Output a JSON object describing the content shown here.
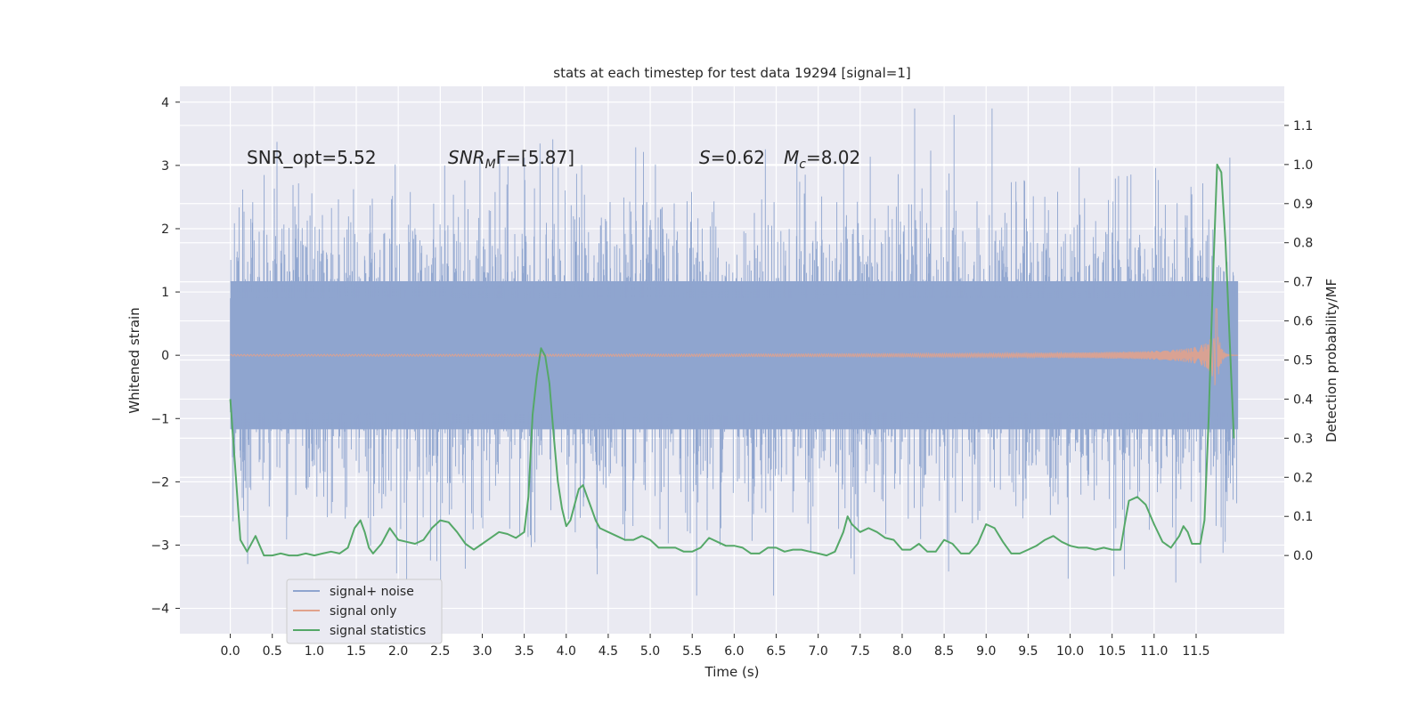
{
  "chart_data": {
    "type": "line",
    "title": "stats at each timestep for test data 19294 [signal=1]",
    "xlabel": "Time (s)",
    "ylabel": "Whitened strain",
    "ylabel_right": "Detection probability/MF",
    "xlim": [
      -0.6,
      12.55
    ],
    "ylim": [
      -4.4,
      4.25
    ],
    "ylim_right": [
      -0.2,
      1.2
    ],
    "grid": true,
    "legend_position": "lower-left",
    "x_ticks": [
      "0.0",
      "0.5",
      "1.0",
      "1.5",
      "2.0",
      "2.5",
      "3.0",
      "3.5",
      "4.0",
      "4.5",
      "5.0",
      "5.5",
      "6.0",
      "6.5",
      "7.0",
      "7.5",
      "8.0",
      "8.5",
      "9.0",
      "9.5",
      "10.0",
      "10.5",
      "11.0",
      "11.5"
    ],
    "y_ticks": [
      "4",
      "3",
      "2",
      "1",
      "0",
      "−1",
      "−2",
      "−3",
      "−4"
    ],
    "y_ticks_right": [
      "1.1",
      "1.0",
      "0.9",
      "0.8",
      "0.7",
      "0.6",
      "0.5",
      "0.4",
      "0.3",
      "0.2",
      "0.1",
      "0.0"
    ],
    "annotations": {
      "snr_opt": "SNR_opt=5.52",
      "snr_mf_label": "SNR",
      "snr_mf_sub": "M",
      "snr_mf_value": "F=[5.87]",
      "s_label": "S",
      "s_value": "=0.62",
      "mc_label": "M",
      "mc_sub": "c",
      "mc_value": "=8.02"
    },
    "series": [
      {
        "name": "signal+ noise",
        "color": "#8fa5cf",
        "description_values": "white noise, approx. range -3.8 to 3.9, t = 0 to 12",
        "t_range": [
          0,
          12
        ],
        "typical_extent": [
          -1.8,
          1.8
        ],
        "extreme_extent": [
          -3.8,
          3.9
        ]
      },
      {
        "name": "signal only",
        "color": "#e1a28c",
        "t_range": [
          0,
          12
        ],
        "chirp_end": 11.75,
        "peak_amplitude": 0.8
      },
      {
        "name": "signal statistics",
        "color": "#55a868",
        "x": [
          0.0,
          0.05,
          0.12,
          0.2,
          0.3,
          0.4,
          0.5,
          0.6,
          0.7,
          0.8,
          0.9,
          1.0,
          1.1,
          1.2,
          1.3,
          1.4,
          1.48,
          1.55,
          1.6,
          1.65,
          1.7,
          1.8,
          1.9,
          2.0,
          2.1,
          2.2,
          2.3,
          2.4,
          2.5,
          2.6,
          2.7,
          2.8,
          2.9,
          3.0,
          3.1,
          3.2,
          3.3,
          3.4,
          3.5,
          3.55,
          3.6,
          3.65,
          3.7,
          3.75,
          3.8,
          3.85,
          3.9,
          3.95,
          4.0,
          4.05,
          4.1,
          4.15,
          4.2,
          4.25,
          4.3,
          4.35,
          4.4,
          4.5,
          4.6,
          4.7,
          4.8,
          4.9,
          5.0,
          5.1,
          5.2,
          5.3,
          5.4,
          5.5,
          5.6,
          5.7,
          5.8,
          5.9,
          6.0,
          6.1,
          6.2,
          6.3,
          6.4,
          6.5,
          6.6,
          6.7,
          6.8,
          6.9,
          7.0,
          7.1,
          7.2,
          7.3,
          7.35,
          7.4,
          7.5,
          7.6,
          7.7,
          7.8,
          7.9,
          8.0,
          8.1,
          8.2,
          8.3,
          8.4,
          8.5,
          8.6,
          8.7,
          8.8,
          8.9,
          9.0,
          9.1,
          9.2,
          9.3,
          9.4,
          9.5,
          9.6,
          9.7,
          9.8,
          9.9,
          10.0,
          10.1,
          10.2,
          10.3,
          10.4,
          10.5,
          10.6,
          10.65,
          10.7,
          10.8,
          10.9,
          11.0,
          11.1,
          11.2,
          11.3,
          11.35,
          11.4,
          11.45,
          11.5,
          11.55,
          11.6,
          11.65,
          11.7,
          11.75,
          11.8,
          11.85,
          11.9,
          11.95
        ],
        "values": [
          0.4,
          0.25,
          0.04,
          0.01,
          0.05,
          0.0,
          0.0,
          0.005,
          0.0,
          0.0,
          0.005,
          0.0,
          0.005,
          0.01,
          0.005,
          0.02,
          0.07,
          0.09,
          0.06,
          0.02,
          0.005,
          0.03,
          0.07,
          0.04,
          0.035,
          0.03,
          0.04,
          0.07,
          0.09,
          0.085,
          0.06,
          0.03,
          0.015,
          0.03,
          0.045,
          0.06,
          0.055,
          0.045,
          0.06,
          0.15,
          0.36,
          0.46,
          0.53,
          0.51,
          0.44,
          0.31,
          0.19,
          0.12,
          0.075,
          0.09,
          0.13,
          0.17,
          0.18,
          0.15,
          0.12,
          0.09,
          0.07,
          0.06,
          0.05,
          0.04,
          0.04,
          0.05,
          0.04,
          0.02,
          0.02,
          0.02,
          0.01,
          0.01,
          0.02,
          0.045,
          0.035,
          0.025,
          0.025,
          0.02,
          0.005,
          0.005,
          0.02,
          0.02,
          0.01,
          0.015,
          0.015,
          0.01,
          0.005,
          0.0,
          0.01,
          0.06,
          0.1,
          0.08,
          0.06,
          0.07,
          0.06,
          0.045,
          0.04,
          0.015,
          0.015,
          0.03,
          0.01,
          0.01,
          0.04,
          0.03,
          0.005,
          0.005,
          0.03,
          0.08,
          0.07,
          0.035,
          0.005,
          0.005,
          0.015,
          0.025,
          0.04,
          0.05,
          0.035,
          0.025,
          0.02,
          0.02,
          0.015,
          0.02,
          0.015,
          0.015,
          0.08,
          0.14,
          0.15,
          0.13,
          0.08,
          0.035,
          0.02,
          0.05,
          0.075,
          0.06,
          0.03,
          0.03,
          0.03,
          0.09,
          0.35,
          0.7,
          1.0,
          0.98,
          0.8,
          0.55,
          0.3
        ]
      }
    ]
  }
}
